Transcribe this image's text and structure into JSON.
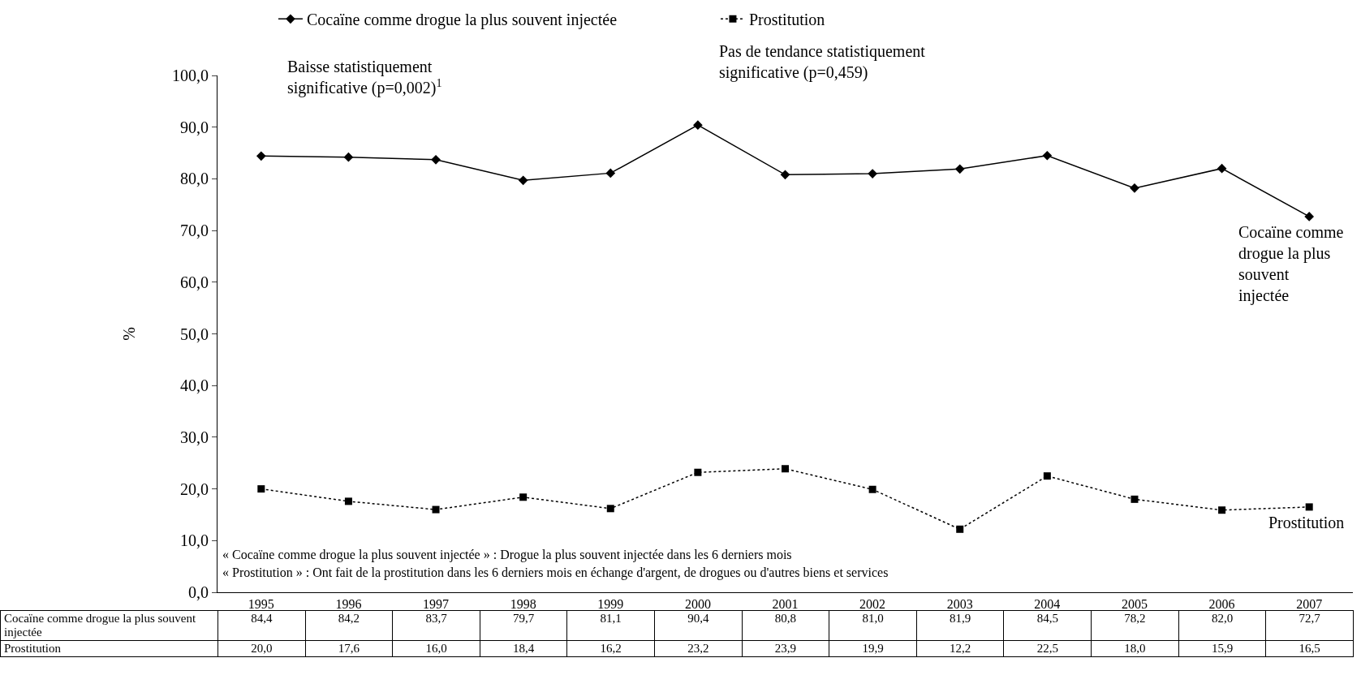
{
  "chart_data": {
    "type": "line",
    "ylabel": "%",
    "categories": [
      "1995",
      "1996",
      "1997",
      "1998",
      "1999",
      "2000",
      "2001",
      "2002",
      "2003",
      "2004",
      "2005",
      "2006",
      "2007"
    ],
    "series": [
      {
        "name": "Cocaïne comme drogue la plus souvent injectée",
        "color": "#000000",
        "marker": "diamond",
        "line_style": "solid",
        "values": [
          84.4,
          84.2,
          83.7,
          79.7,
          81.1,
          90.4,
          80.8,
          81.0,
          81.9,
          84.5,
          78.2,
          82.0,
          72.7
        ],
        "value_labels": [
          "84,4",
          "84,2",
          "83,7",
          "79,7",
          "81,1",
          "90,4",
          "80,8",
          "81,0",
          "81,9",
          "84,5",
          "78,2",
          "82,0",
          "72,7"
        ]
      },
      {
        "name": "Prostitution",
        "color": "#000000",
        "marker": "square",
        "line_style": "dotted",
        "values": [
          20.0,
          17.6,
          16.0,
          18.4,
          16.2,
          23.2,
          23.9,
          19.9,
          12.2,
          22.5,
          18.0,
          15.9,
          16.5
        ],
        "value_labels": [
          "20,0",
          "17,6",
          "16,0",
          "18,4",
          "16,2",
          "23,2",
          "23,9",
          "19,9",
          "12,2",
          "22,5",
          "18,0",
          "15,9",
          "16,5"
        ]
      }
    ],
    "ylim": [
      0,
      100
    ],
    "yticks": [
      {
        "value": 0,
        "label": "0,0"
      },
      {
        "value": 10,
        "label": "10,0"
      },
      {
        "value": 20,
        "label": "20,0"
      },
      {
        "value": 30,
        "label": "30,0"
      },
      {
        "value": 40,
        "label": "40,0"
      },
      {
        "value": 50,
        "label": "50,0"
      },
      {
        "value": 60,
        "label": "60,0"
      },
      {
        "value": 70,
        "label": "70,0"
      },
      {
        "value": 80,
        "label": "80,0"
      },
      {
        "value": 90,
        "label": "90,0"
      },
      {
        "value": 100,
        "label": "100,0"
      }
    ],
    "grid": false,
    "legend": "top",
    "annotations": [
      "Baisse statistiquement significative (p=0,002)$^{1}$",
      "Pas de tendance statistiquement significative (p=0,459)",
      {
        "text": "Cocaïne comme drogue la plus souvent injectée",
        "x": "2007",
        "y": 72.7
      },
      {
        "text": "Prostitution",
        "x": "2007",
        "y": 16.5
      },
      "« Cocaïne comme drogue la plus souvent injectée » : Drogue la plus souvent injectée dans les 6 derniers mois",
      "« Prostitution » : Ont fait de la prostitution dans les 6 derniers mois en échange d'argent, de drogues ou d'autres biens et services"
    ]
  }
}
